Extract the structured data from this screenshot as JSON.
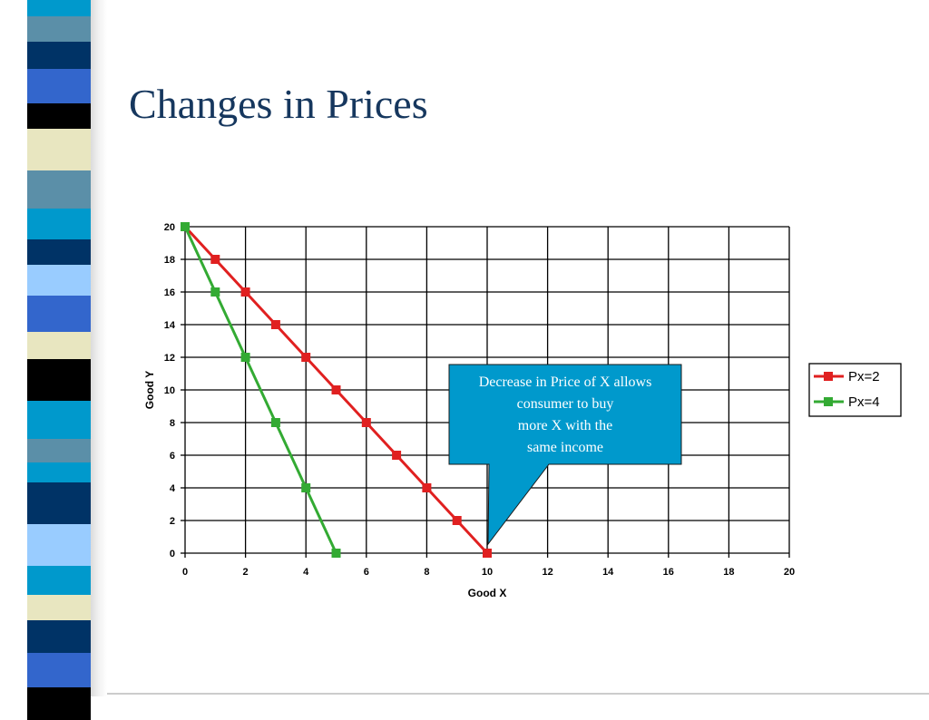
{
  "slide": {
    "title": "Changes in Prices"
  },
  "sidebar_colors": [
    "#0099cc",
    "#5b8fa8",
    "#003366",
    "#3366cc",
    "#000000",
    "#e8e6c0",
    "#5b8fa8",
    "#0099cc",
    "#003366",
    "#99ccff",
    "#3366cc",
    "#e8e6c0",
    "#000000",
    "#0099cc",
    "#5b8fa8",
    "#0099cc",
    "#003366",
    "#99ccff",
    "#0099cc",
    "#e8e6c0",
    "#003366",
    "#3366cc",
    "#000000"
  ],
  "chart_data": {
    "type": "line",
    "title": "",
    "xlabel": "Good X",
    "ylabel": "Good Y",
    "xlim": [
      0,
      20
    ],
    "ylim": [
      0,
      20
    ],
    "x_ticks": [
      0,
      2,
      4,
      6,
      8,
      10,
      12,
      14,
      16,
      18,
      20
    ],
    "y_ticks": [
      0,
      2,
      4,
      6,
      8,
      10,
      12,
      14,
      16,
      18,
      20
    ],
    "grid": true,
    "legend_position": "right",
    "series": [
      {
        "name": "Px=2",
        "color": "#e02020",
        "x": [
          0,
          1,
          2,
          3,
          4,
          5,
          6,
          7,
          8,
          9,
          10
        ],
        "y": [
          20,
          18,
          16,
          14,
          12,
          10,
          8,
          6,
          4,
          2,
          0
        ]
      },
      {
        "name": "Px=4",
        "color": "#33aa33",
        "x": [
          0,
          1,
          2,
          3,
          4,
          5
        ],
        "y": [
          20,
          16,
          12,
          8,
          4,
          0
        ]
      }
    ],
    "annotation": {
      "lines": [
        "Decrease in Price of X allows",
        "consumer to buy",
        "more X with the",
        "same income"
      ],
      "points_to": {
        "x": 10,
        "y": 0
      },
      "fill": "#0099cc"
    }
  }
}
